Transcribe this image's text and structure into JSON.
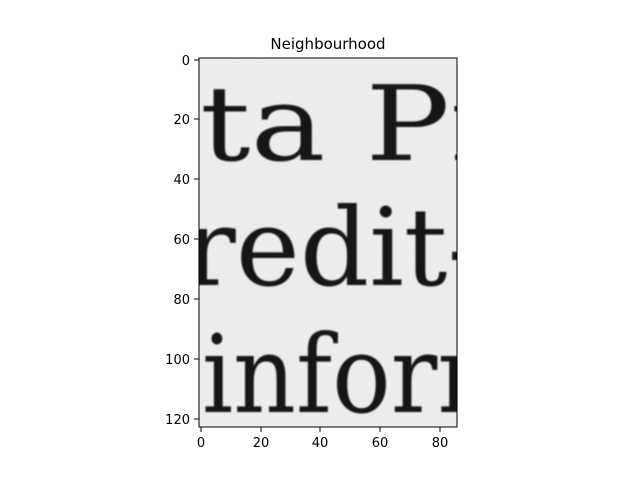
{
  "title": "Neighbourhood",
  "image": {
    "text_lines": [
      "ta Pr",
      "redit-",
      "inforr"
    ],
    "background_color": "#efefef",
    "ink_color": "#151515",
    "colormap": "gray"
  },
  "axes": {
    "x_ticks": [
      "0",
      "20",
      "40",
      "60",
      "80"
    ],
    "y_ticks": [
      "0",
      "20",
      "40",
      "60",
      "80",
      "100",
      "120"
    ],
    "xlim": [
      -0.5,
      85.5
    ],
    "ylim": [
      122.5,
      -0.5
    ]
  }
}
